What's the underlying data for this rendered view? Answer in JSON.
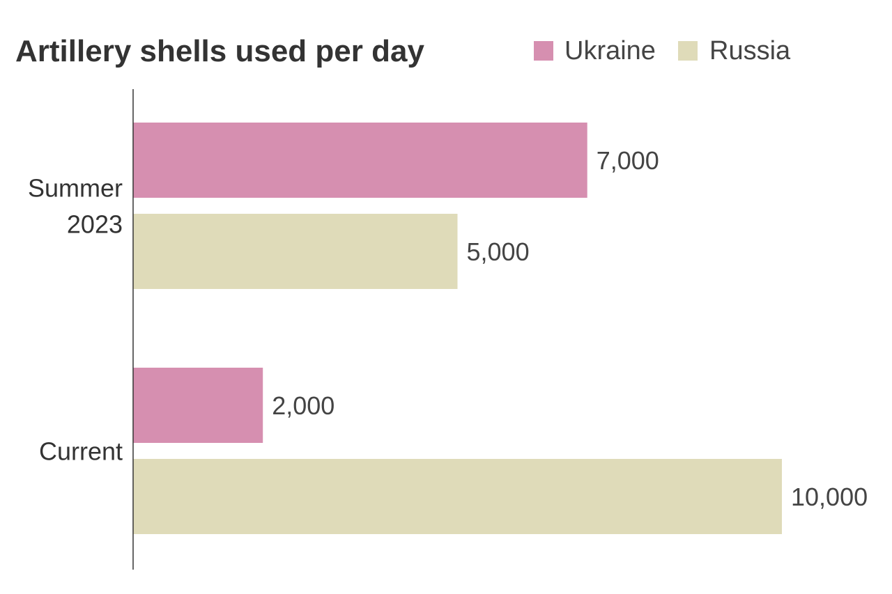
{
  "chart_data": {
    "type": "bar",
    "orientation": "horizontal",
    "title": "Artillery shells used per day",
    "categories": [
      [
        "Summer",
        "2023"
      ],
      [
        "Current"
      ]
    ],
    "series": [
      {
        "name": "Ukraine",
        "color": "#d68fb0",
        "values": [
          7000,
          2000
        ],
        "labels": [
          "7,000",
          "2,000"
        ]
      },
      {
        "name": "Russia",
        "color": "#dfdbb9",
        "values": [
          5000,
          10000
        ],
        "labels": [
          "5,000",
          "10,000"
        ]
      }
    ],
    "xlim": [
      0,
      10000
    ],
    "grid": false,
    "legend_position": "top-right",
    "axis_color": "#333333"
  }
}
